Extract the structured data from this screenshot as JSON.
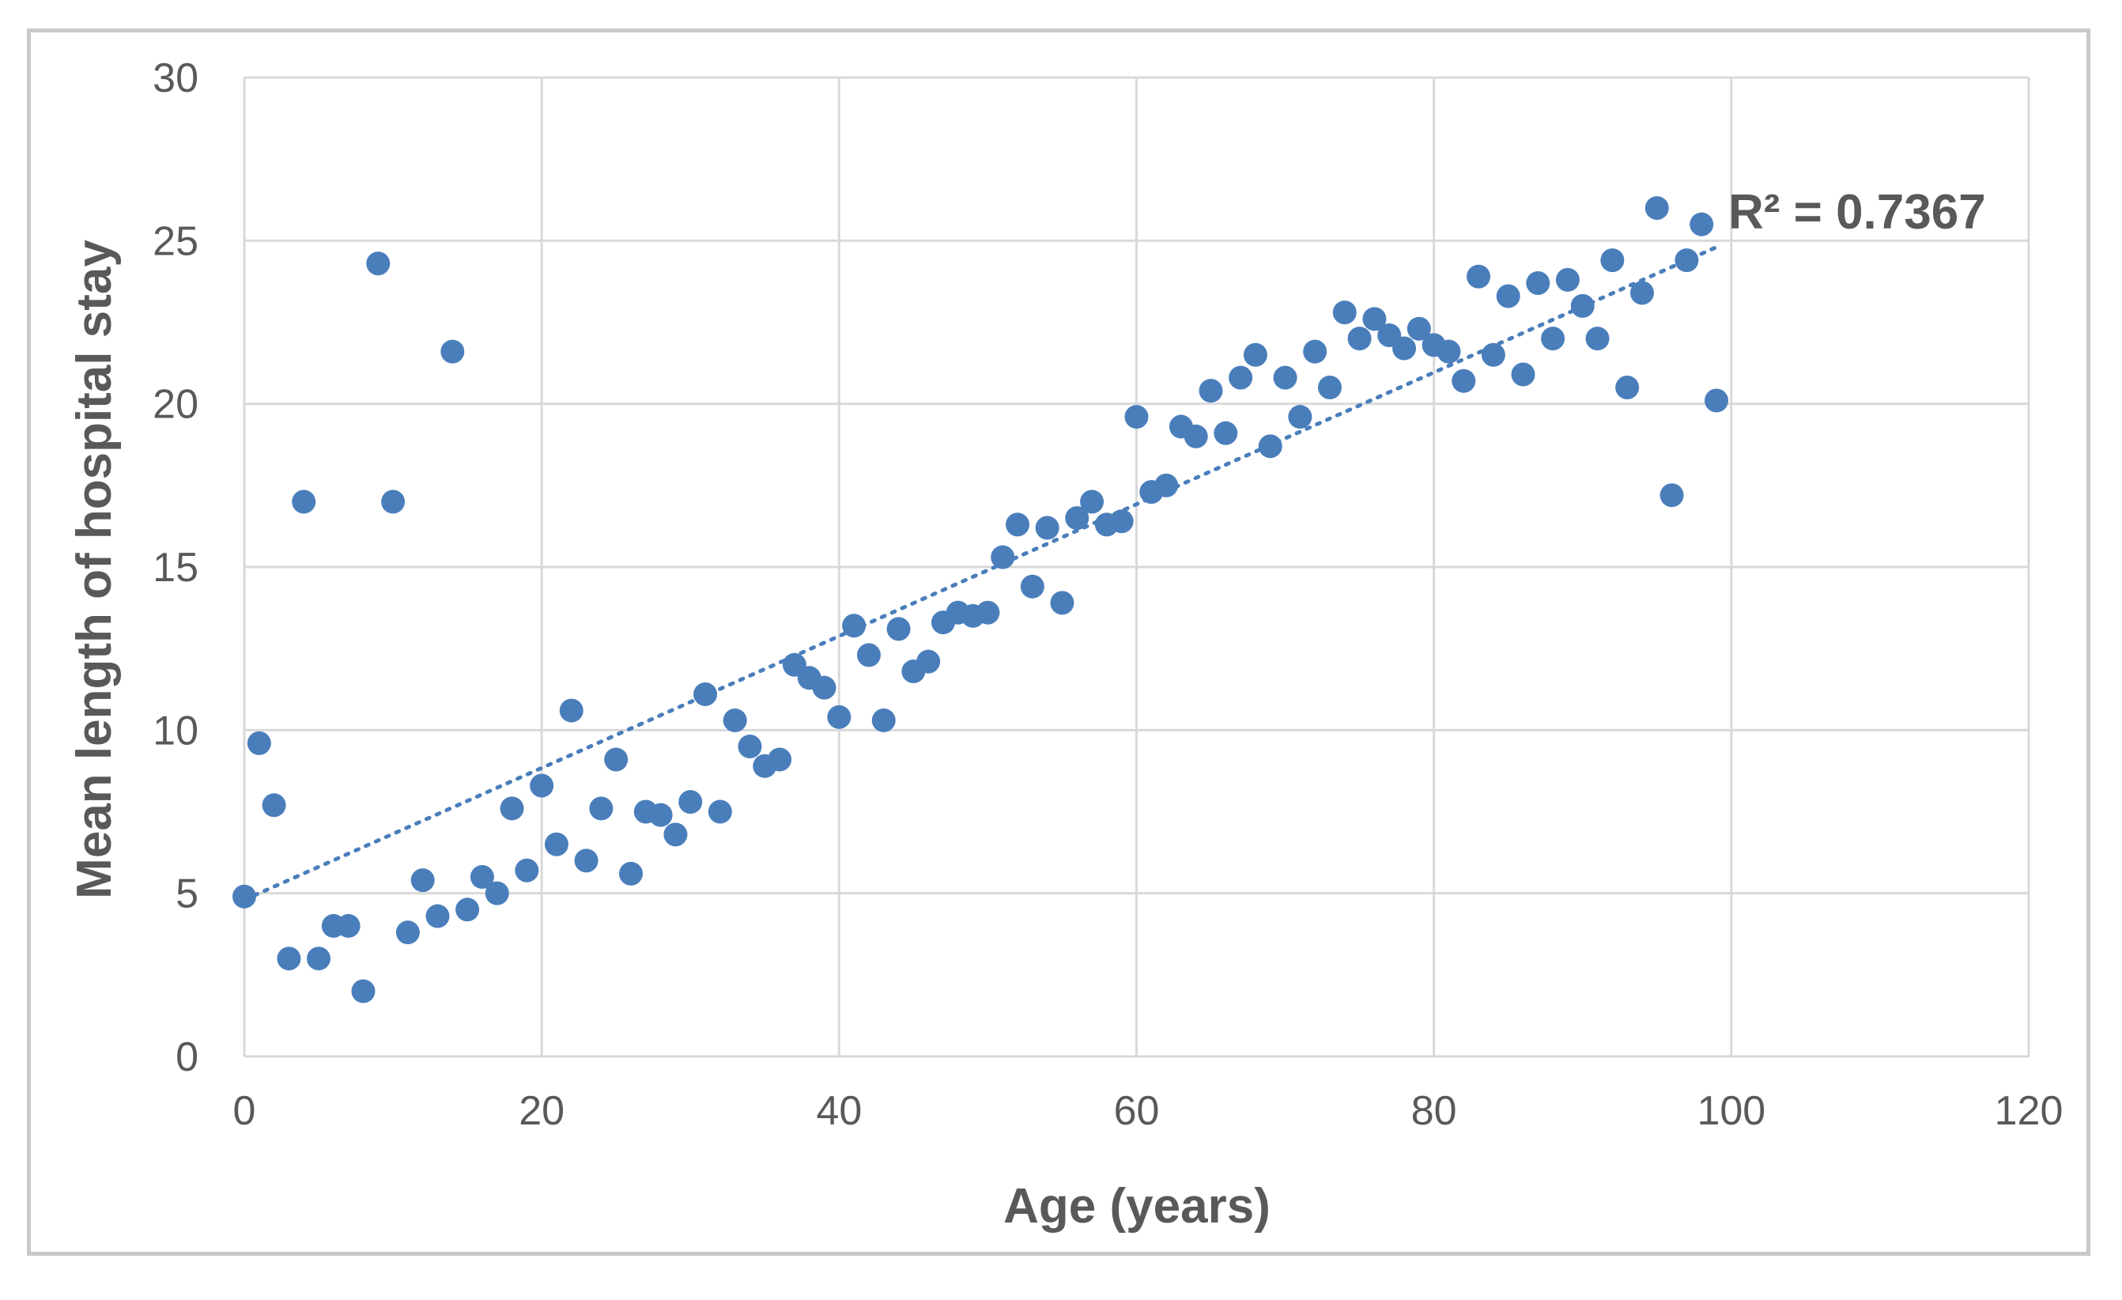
{
  "chart_data": {
    "type": "scatter",
    "title": "",
    "xlabel": "Age (years)",
    "ylabel": "Mean length of hospital stay",
    "xlim": [
      0,
      120
    ],
    "ylim": [
      0,
      30
    ],
    "x_ticks": [
      "0",
      "20",
      "40",
      "60",
      "80",
      "100",
      "120"
    ],
    "y_ticks": [
      "0",
      "5",
      "10",
      "15",
      "20",
      "25",
      "30"
    ],
    "grid": true,
    "legend": "none",
    "marker_color": "#4a7ebb",
    "gridline_color": "#d9d9d9",
    "trendline": {
      "type": "linear",
      "style": "dotted",
      "color": "#4a7ebb",
      "x_range": [
        0,
        99
      ],
      "y_start": 4.8,
      "y_end": 24.8,
      "r2_label": "R² = 0.7367"
    },
    "series": [
      {
        "x": [
          0,
          1,
          2,
          3,
          4,
          5,
          6,
          7,
          8,
          9,
          10,
          11,
          12,
          13,
          14,
          15,
          16,
          17,
          18,
          19,
          20,
          21,
          22,
          23,
          24,
          25,
          26,
          27,
          28,
          29,
          30,
          31,
          32,
          33,
          34,
          35,
          36,
          37,
          38,
          39,
          40,
          41,
          42,
          43,
          44,
          45,
          46,
          47,
          48,
          49,
          50,
          51,
          52,
          53,
          54,
          55,
          56,
          57,
          58,
          59,
          60,
          61,
          62,
          63,
          64,
          65,
          66,
          67,
          68,
          69,
          70,
          71,
          72,
          73,
          74,
          75,
          76,
          77,
          78,
          79,
          80,
          81,
          82,
          83,
          84,
          85,
          86,
          87,
          88,
          89,
          90,
          91,
          92,
          93,
          94,
          95,
          96,
          97,
          98,
          99
        ],
        "y": [
          4.9,
          9.6,
          7.7,
          3.0,
          17.0,
          3.0,
          4.0,
          4.0,
          2.0,
          24.3,
          17.0,
          3.8,
          5.4,
          4.3,
          21.6,
          4.5,
          5.5,
          5.0,
          7.6,
          5.7,
          8.3,
          6.5,
          10.6,
          6.0,
          7.6,
          9.1,
          5.6,
          7.5,
          7.4,
          6.8,
          7.8,
          11.1,
          7.5,
          10.3,
          9.5,
          8.9,
          9.1,
          12.0,
          11.6,
          11.3,
          10.4,
          13.2,
          12.3,
          10.3,
          13.1,
          11.8,
          12.1,
          13.3,
          13.6,
          13.5,
          13.6,
          15.3,
          16.3,
          14.4,
          16.2,
          13.9,
          16.5,
          17.0,
          16.3,
          16.4,
          19.6,
          17.3,
          17.5,
          19.3,
          19.0,
          20.4,
          19.1,
          20.8,
          21.5,
          18.7,
          20.8,
          19.6,
          21.6,
          20.5,
          22.8,
          22.0,
          22.6,
          22.1,
          21.7,
          22.3,
          21.8,
          21.6,
          20.7,
          23.9,
          21.5,
          23.3,
          20.9,
          23.7,
          22.0,
          23.8,
          23.0,
          22.0,
          24.4,
          20.5,
          23.4,
          26.0,
          17.2,
          24.4,
          25.5,
          20.1
        ]
      }
    ]
  }
}
